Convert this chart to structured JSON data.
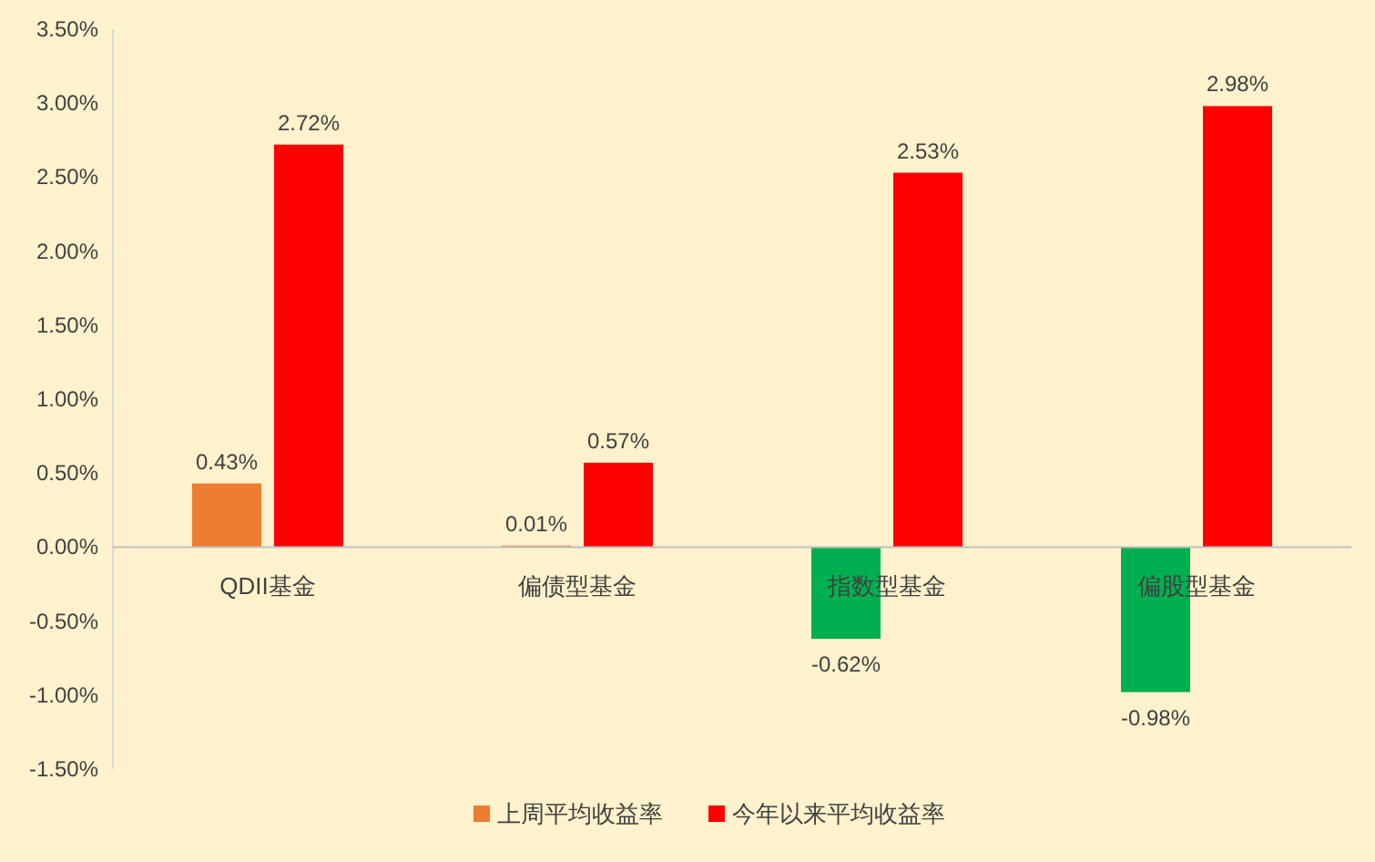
{
  "chart_data": {
    "type": "bar",
    "categories": [
      "QDII基金",
      "偏债型基金",
      "指数型基金",
      "偏股型基金"
    ],
    "series": [
      {
        "name": "上周平均收益率",
        "color": "#ed7d31",
        "colors": [
          "#ed7d31",
          "#ed7d31",
          "#00b050",
          "#00b050"
        ],
        "values": [
          0.43,
          0.01,
          -0.62,
          -0.98
        ],
        "value_labels": [
          "0.43%",
          "0.01%",
          "-0.62%",
          "-0.98%"
        ]
      },
      {
        "name": "今年以来平均收益率",
        "color": "#ff0000",
        "values": [
          2.72,
          0.57,
          2.53,
          2.98
        ],
        "value_labels": [
          "2.72%",
          "0.57%",
          "2.53%",
          "2.98%"
        ]
      }
    ],
    "ylim": [
      -1.5,
      3.5
    ],
    "yticks": [
      {
        "value": -1.5,
        "label": "-1.50%"
      },
      {
        "value": -1,
        "label": "-1.00%"
      },
      {
        "value": -0.5,
        "label": "-0.50%"
      },
      {
        "value": 0,
        "label": "0.00%"
      },
      {
        "value": 0.5,
        "label": "0.50%"
      },
      {
        "value": 1,
        "label": "1.00%"
      },
      {
        "value": 1.5,
        "label": "1.50%"
      },
      {
        "value": 2,
        "label": "2.00%"
      },
      {
        "value": 2.5,
        "label": "2.50%"
      },
      {
        "value": 3,
        "label": "3.00%"
      },
      {
        "value": 3.5,
        "label": "3.50%"
      }
    ],
    "grid": false,
    "legend": "bottom"
  }
}
